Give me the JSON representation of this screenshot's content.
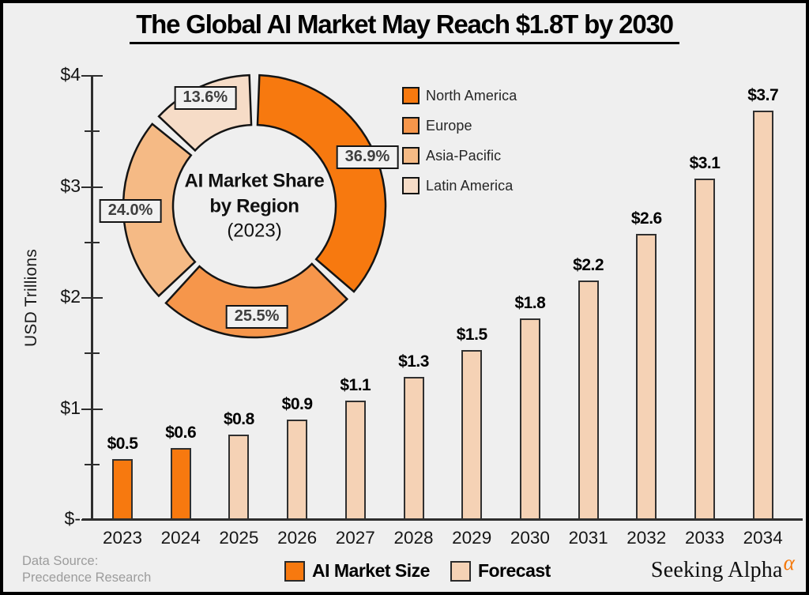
{
  "title": "The Global AI Market May Reach $1.8T by 2030",
  "donut_center": {
    "line1": "AI Market Share",
    "line2": "by Region",
    "line3": "(2023)"
  },
  "footer": {
    "source_line1": "Data Source:",
    "source_line2": "Precedence Research",
    "brand": "Seeking Alpha",
    "brand_mark": "α"
  },
  "colors": {
    "background": "#efefef",
    "axis": "#2e2e2e",
    "bar_actual": "#f7790f",
    "bar_forecast": "#f5d2b5",
    "accent_orange": "#f4790b"
  },
  "chart_data": [
    {
      "type": "bar",
      "title": "The Global AI Market May Reach $1.8T by 2030",
      "xlabel": "",
      "ylabel": "USD Trillions",
      "ylim": [
        0,
        4
      ],
      "y_tick_labels": [
        "$-",
        "$1",
        "$2",
        "$3",
        "$4"
      ],
      "y_minor_tick_step": 0.5,
      "grid": false,
      "categories": [
        "2023",
        "2024",
        "2025",
        "2026",
        "2027",
        "2028",
        "2029",
        "2030",
        "2031",
        "2032",
        "2033",
        "2034"
      ],
      "values": [
        0.54,
        0.64,
        0.76,
        0.9,
        1.07,
        1.28,
        1.52,
        1.81,
        2.15,
        2.57,
        3.07,
        3.68
      ],
      "value_labels": [
        "$0.5",
        "$0.6",
        "$0.8",
        "$0.9",
        "$1.1",
        "$1.3",
        "$1.5",
        "$1.8",
        "$2.2",
        "$2.6",
        "$3.1",
        "$3.7"
      ],
      "series": [
        {
          "name": "AI Market Size",
          "color": "#f7790f",
          "categories": [
            "2023",
            "2024"
          ]
        },
        {
          "name": "Forecast",
          "color": "#f5d2b5",
          "categories": [
            "2025",
            "2026",
            "2027",
            "2028",
            "2029",
            "2030",
            "2031",
            "2032",
            "2033",
            "2034"
          ]
        }
      ],
      "legend_position": "bottom"
    },
    {
      "type": "pie",
      "subtype": "donut",
      "title": "AI Market Share by Region (2023)",
      "labels": [
        "North America",
        "Europe",
        "Asia-Pacific",
        "Latin America"
      ],
      "values": [
        36.9,
        25.5,
        24.0,
        13.6
      ],
      "value_labels": [
        "36.9%",
        "25.5%",
        "24.0%",
        "13.6%"
      ],
      "colors": [
        "#f7790f",
        "#f6964b",
        "#f5ba85",
        "#f6dcc7"
      ],
      "direction": "clockwise",
      "start_angle_deg": 0,
      "legend_position": "right"
    }
  ]
}
